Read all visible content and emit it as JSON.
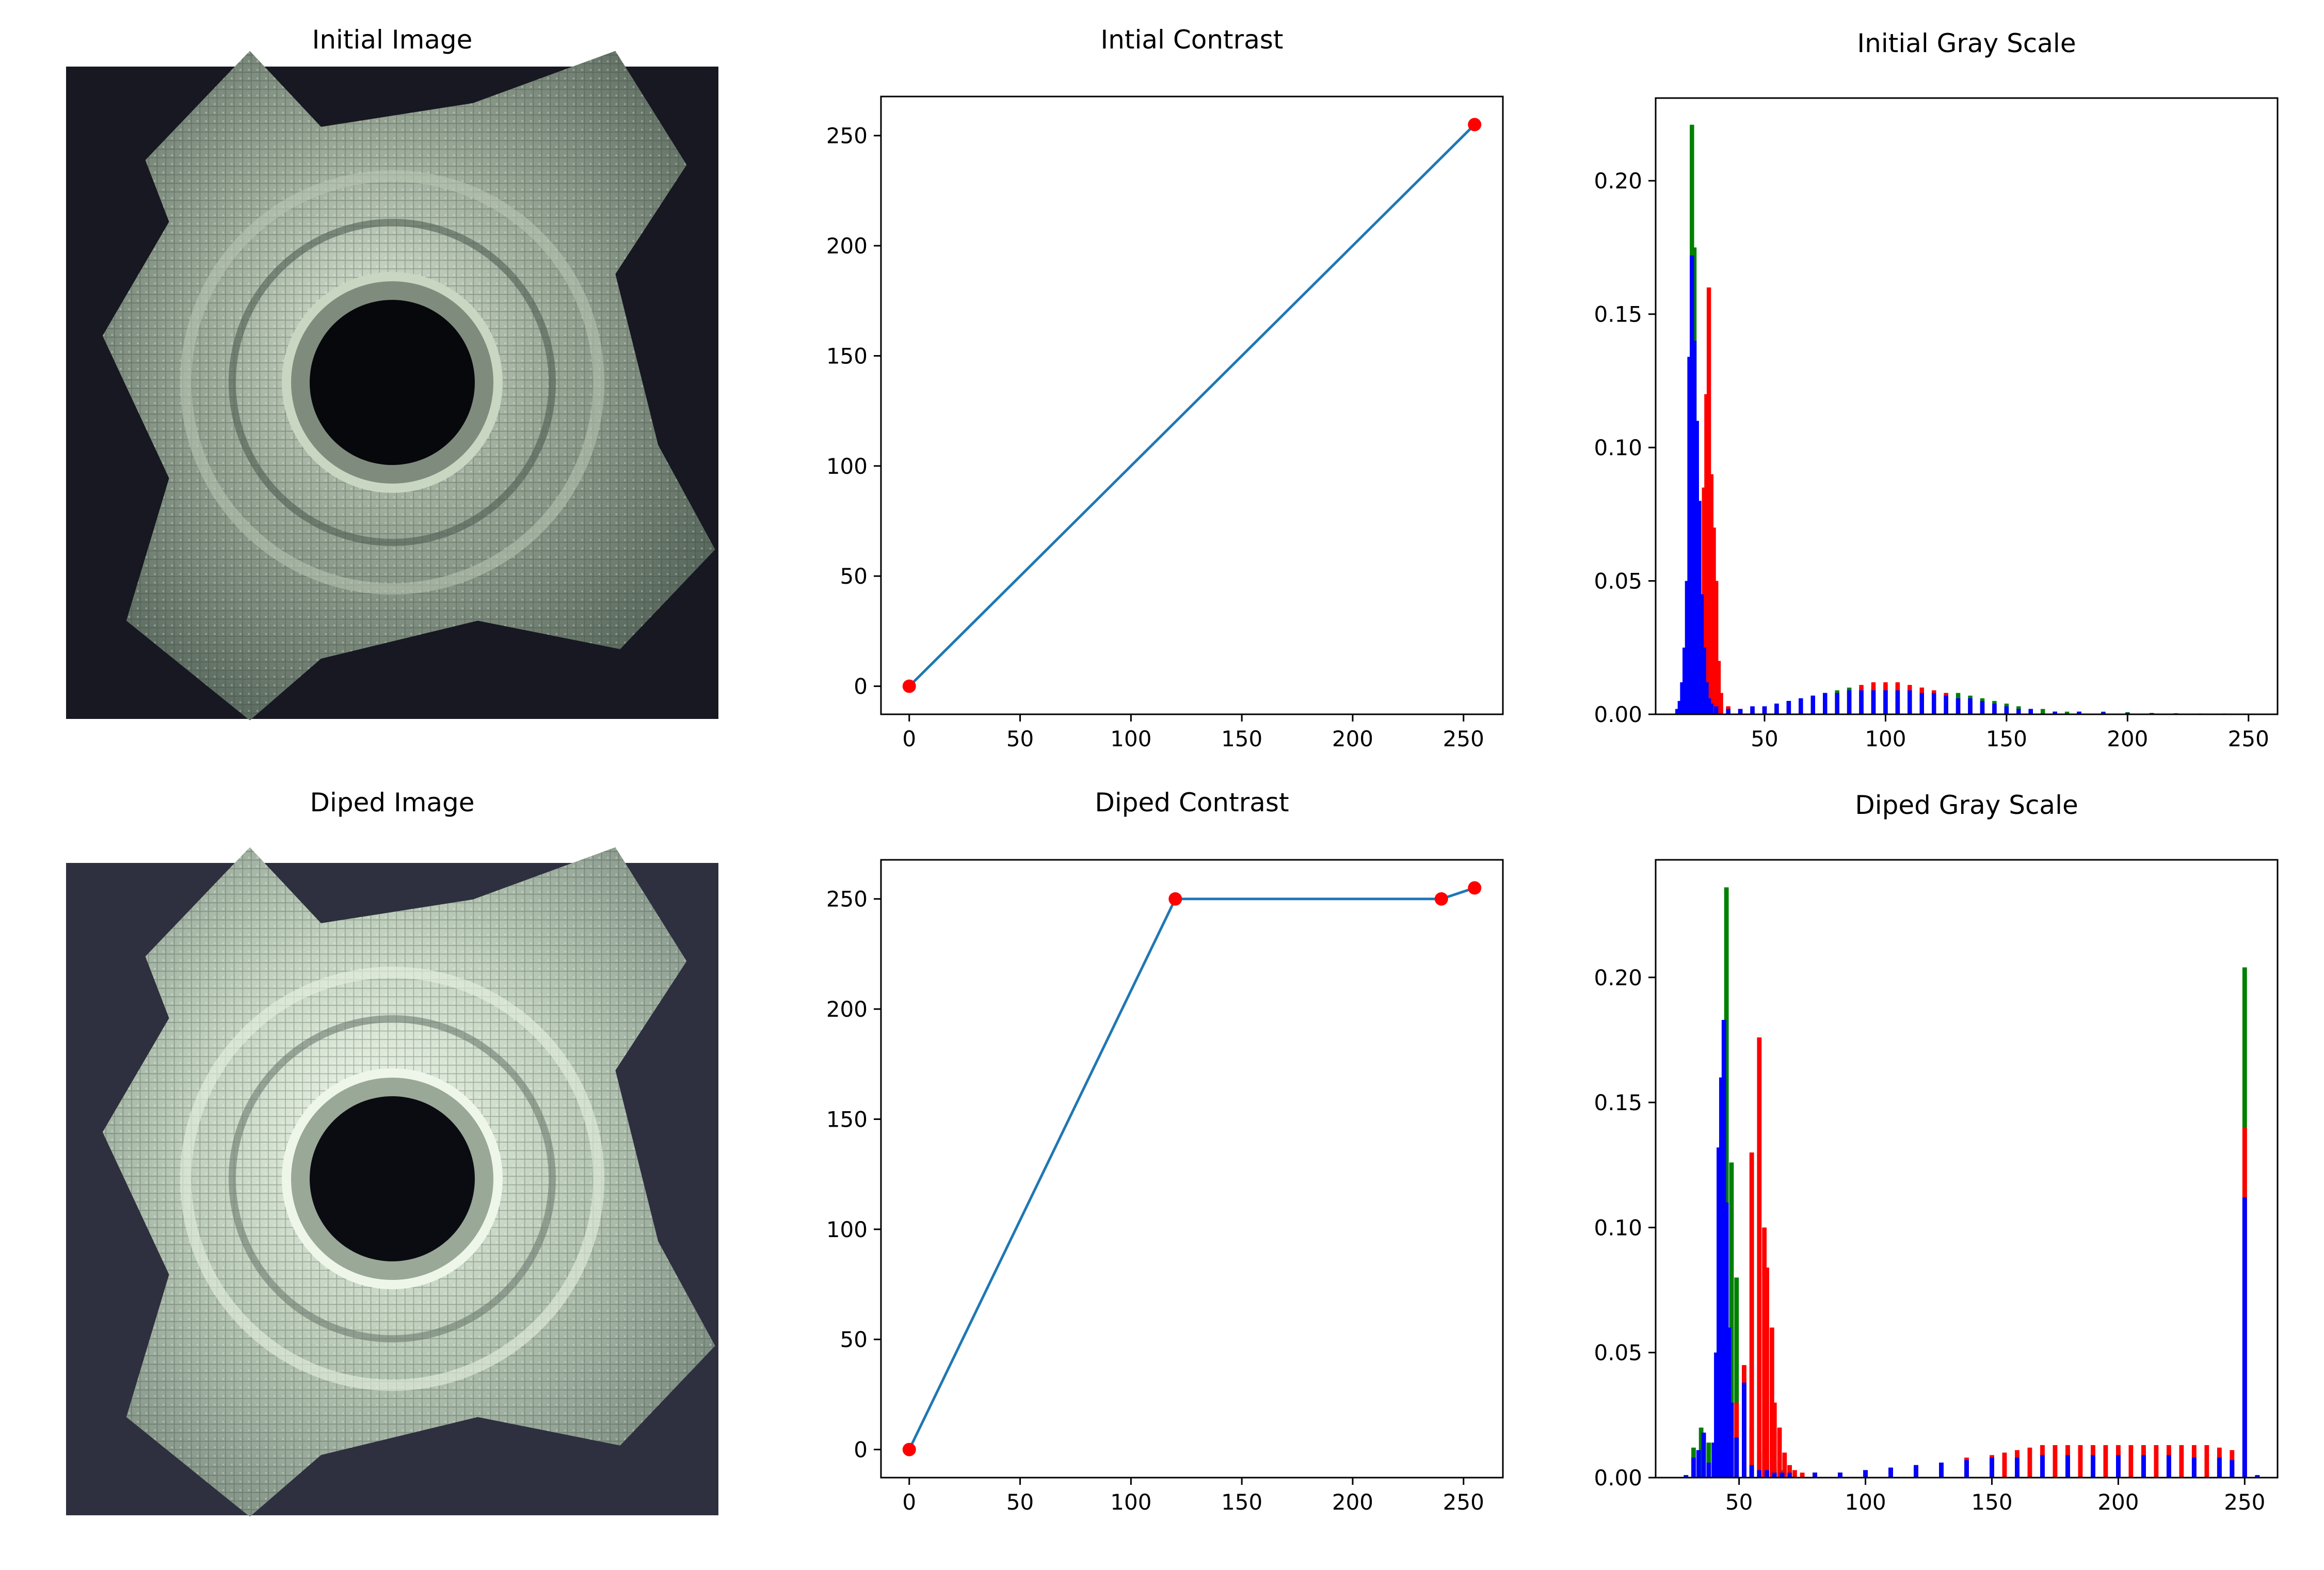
{
  "figure": {
    "titles": {
      "initial_image": "Initial Image",
      "diped_image": "Diped Image"
    },
    "image_colors": {
      "background_initial": "#171821",
      "background_diped": "#2e2f3f",
      "metal_light": "#c9d6c2",
      "metal_mid": "#7f8c7d",
      "metal_dark": "#4d5a4f",
      "hole": "#07080c"
    }
  },
  "chart_data": [
    {
      "id": "initial_contrast",
      "type": "line",
      "title": "Intial Contrast",
      "xlabel": "",
      "ylabel": "",
      "xlim": [
        -12.75,
        267.75
      ],
      "ylim": [
        -12.75,
        267.75
      ],
      "xticks": [
        0,
        50,
        100,
        150,
        200,
        250
      ],
      "yticks": [
        0,
        50,
        100,
        150,
        200,
        250
      ],
      "x": [
        0,
        255
      ],
      "y": [
        0,
        255
      ],
      "line_color": "#1f77b4",
      "marker_color": "#ff0000",
      "grid": false
    },
    {
      "id": "initial_gray_scale",
      "type": "bar",
      "title": "Initial Gray Scale",
      "xlim": [
        5,
        262
      ],
      "ylim": [
        0,
        0.231
      ],
      "xticks": [
        50,
        100,
        150,
        200,
        250
      ],
      "yticks": [
        0.0,
        0.05,
        0.1,
        0.15,
        0.2
      ],
      "ytick_labels": [
        "0.00",
        "0.05",
        "0.10",
        "0.15",
        "0.20"
      ],
      "grid": false,
      "series": [
        {
          "name": "green",
          "color": "#008000",
          "x": [
            14,
            16,
            18,
            19,
            20,
            21,
            22,
            23,
            24,
            25,
            26,
            27,
            28,
            29,
            30,
            32,
            35,
            40,
            45,
            50,
            55,
            60,
            65,
            70,
            75,
            80,
            85,
            90,
            95,
            100,
            105,
            110,
            115,
            120,
            125,
            130,
            135,
            140,
            145,
            150,
            155,
            160,
            165,
            170,
            175,
            180,
            190,
            200,
            210,
            220,
            230,
            240,
            250,
            255
          ],
          "values": [
            0.001,
            0.005,
            0.018,
            0.045,
            0.221,
            0.175,
            0.09,
            0.05,
            0.03,
            0.02,
            0.012,
            0.008,
            0.006,
            0.004,
            0.003,
            0.002,
            0.002,
            0.002,
            0.003,
            0.003,
            0.004,
            0.005,
            0.006,
            0.007,
            0.008,
            0.009,
            0.01,
            0.01,
            0.01,
            0.011,
            0.011,
            0.01,
            0.01,
            0.009,
            0.008,
            0.008,
            0.007,
            0.006,
            0.005,
            0.004,
            0.003,
            0.002,
            0.002,
            0.001,
            0.001,
            0.001,
            0.001,
            0.0008,
            0.0005,
            0.0004,
            0.0003,
            0.0003,
            0.0002,
            0.0002
          ]
        },
        {
          "name": "red",
          "color": "#ff0000",
          "x": [
            20,
            22,
            24,
            25,
            26,
            27,
            28,
            29,
            30,
            31,
            32,
            35,
            40,
            45,
            50,
            55,
            60,
            65,
            70,
            75,
            80,
            85,
            90,
            95,
            100,
            105,
            110,
            115,
            120,
            125,
            130,
            135,
            140,
            145,
            150,
            160,
            170,
            180,
            190,
            200
          ],
          "values": [
            0.01,
            0.02,
            0.04,
            0.085,
            0.12,
            0.16,
            0.09,
            0.07,
            0.05,
            0.02,
            0.008,
            0.003,
            0.002,
            0.002,
            0.003,
            0.003,
            0.004,
            0.005,
            0.006,
            0.007,
            0.008,
            0.009,
            0.011,
            0.012,
            0.012,
            0.012,
            0.011,
            0.01,
            0.009,
            0.008,
            0.006,
            0.005,
            0.004,
            0.003,
            0.002,
            0.001,
            0.001,
            0.0005,
            0.0003,
            0.0002
          ]
        },
        {
          "name": "blue",
          "color": "#0000ff",
          "x": [
            14,
            15,
            16,
            17,
            18,
            19,
            20,
            21,
            22,
            23,
            24,
            25,
            26,
            27,
            28,
            30,
            35,
            40,
            45,
            50,
            55,
            60,
            65,
            70,
            75,
            80,
            85,
            90,
            95,
            100,
            105,
            110,
            115,
            120,
            125,
            130,
            135,
            140,
            145,
            150,
            155,
            160,
            170,
            180,
            190,
            200,
            210,
            220,
            230,
            240,
            250,
            255
          ],
          "values": [
            0.002,
            0.005,
            0.012,
            0.025,
            0.05,
            0.134,
            0.172,
            0.14,
            0.11,
            0.08,
            0.045,
            0.025,
            0.012,
            0.006,
            0.004,
            0.003,
            0.002,
            0.002,
            0.003,
            0.003,
            0.004,
            0.005,
            0.006,
            0.007,
            0.008,
            0.008,
            0.009,
            0.009,
            0.009,
            0.009,
            0.009,
            0.009,
            0.008,
            0.008,
            0.007,
            0.006,
            0.006,
            0.005,
            0.004,
            0.003,
            0.002,
            0.002,
            0.001,
            0.001,
            0.0008,
            0.0005,
            0.0004,
            0.0003,
            0.0003,
            0.0003,
            0.0002,
            0.0002
          ]
        }
      ]
    },
    {
      "id": "diped_contrast",
      "type": "line",
      "title": "Diped Contrast",
      "xlabel": "",
      "ylabel": "",
      "xlim": [
        -12.75,
        267.75
      ],
      "ylim": [
        -12.75,
        267.75
      ],
      "xticks": [
        0,
        50,
        100,
        150,
        200,
        250
      ],
      "yticks": [
        0,
        50,
        100,
        150,
        200,
        250
      ],
      "x": [
        0,
        120,
        240,
        255
      ],
      "y": [
        0,
        250,
        250,
        255
      ],
      "line_color": "#1f77b4",
      "marker_color": "#ff0000",
      "grid": false
    },
    {
      "id": "diped_gray_scale",
      "type": "bar",
      "title": "Diped Gray Scale",
      "xlim": [
        17,
        263
      ],
      "ylim": [
        0,
        0.247
      ],
      "xticks": [
        50,
        100,
        150,
        200,
        250
      ],
      "yticks": [
        0.0,
        0.05,
        0.1,
        0.15,
        0.2
      ],
      "ytick_labels": [
        "0.00",
        "0.05",
        "0.10",
        "0.15",
        "0.20"
      ],
      "grid": false,
      "series": [
        {
          "name": "green",
          "color": "#008000",
          "x": [
            29,
            32,
            35,
            38,
            41,
            43,
            45,
            47,
            49,
            52,
            55,
            58,
            61,
            64,
            67,
            70,
            80,
            90,
            100,
            110,
            120,
            130,
            140,
            150,
            160,
            170,
            180,
            190,
            200,
            210,
            220,
            230,
            240,
            245,
            250,
            255
          ],
          "values": [
            0.001,
            0.012,
            0.02,
            0.014,
            0.05,
            0.13,
            0.236,
            0.126,
            0.08,
            0.04,
            0.02,
            0.01,
            0.006,
            0.004,
            0.003,
            0.002,
            0.002,
            0.002,
            0.003,
            0.004,
            0.005,
            0.006,
            0.007,
            0.008,
            0.009,
            0.01,
            0.011,
            0.011,
            0.011,
            0.011,
            0.011,
            0.01,
            0.009,
            0.008,
            0.204,
            0.001
          ]
        },
        {
          "name": "red",
          "color": "#ff0000",
          "x": [
            45,
            49,
            52,
            55,
            58,
            60,
            61,
            63,
            64,
            66,
            68,
            70,
            72,
            75,
            80,
            90,
            100,
            110,
            120,
            130,
            140,
            150,
            155,
            160,
            165,
            170,
            175,
            180,
            185,
            190,
            195,
            200,
            205,
            210,
            215,
            220,
            225,
            230,
            235,
            240,
            245,
            250
          ],
          "values": [
            0.02,
            0.03,
            0.045,
            0.13,
            0.176,
            0.1,
            0.084,
            0.06,
            0.03,
            0.02,
            0.01,
            0.005,
            0.003,
            0.002,
            0.002,
            0.002,
            0.003,
            0.004,
            0.005,
            0.006,
            0.008,
            0.009,
            0.01,
            0.011,
            0.012,
            0.013,
            0.013,
            0.013,
            0.013,
            0.013,
            0.013,
            0.013,
            0.013,
            0.013,
            0.013,
            0.013,
            0.013,
            0.013,
            0.013,
            0.012,
            0.011,
            0.14
          ]
        },
        {
          "name": "blue",
          "color": "#0000ff",
          "x": [
            29,
            32,
            34,
            36,
            38,
            40,
            41,
            42,
            43,
            44,
            45,
            46,
            47,
            49,
            52,
            55,
            58,
            61,
            64,
            67,
            70,
            80,
            90,
            100,
            110,
            120,
            130,
            140,
            150,
            160,
            170,
            180,
            190,
            200,
            210,
            220,
            230,
            240,
            245,
            250,
            255
          ],
          "values": [
            0.001,
            0.008,
            0.011,
            0.018,
            0.006,
            0.014,
            0.05,
            0.132,
            0.16,
            0.183,
            0.11,
            0.06,
            0.03,
            0.016,
            0.038,
            0.005,
            0.003,
            0.003,
            0.002,
            0.002,
            0.002,
            0.002,
            0.002,
            0.003,
            0.004,
            0.005,
            0.006,
            0.007,
            0.008,
            0.008,
            0.009,
            0.009,
            0.009,
            0.009,
            0.009,
            0.009,
            0.008,
            0.008,
            0.007,
            0.112,
            0.001
          ]
        }
      ]
    }
  ]
}
